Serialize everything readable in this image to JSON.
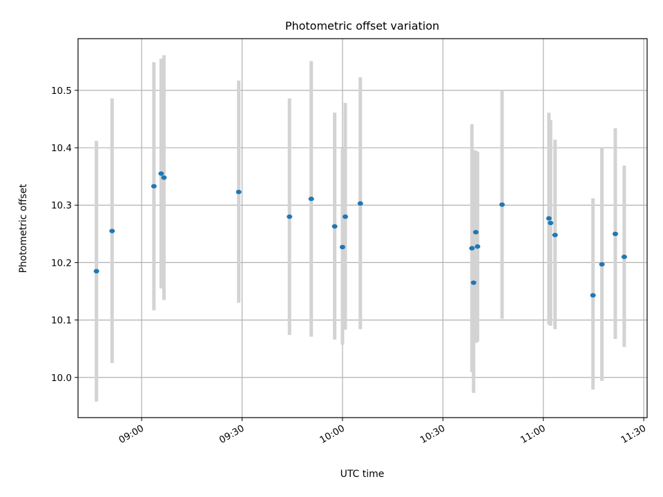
{
  "chart_data": {
    "type": "scatter",
    "title": "Photometric offset variation",
    "xlabel": "UTC time",
    "ylabel": "Photometric offset",
    "xlim": [
      "08:41",
      "11:31"
    ],
    "ylim": [
      9.93,
      10.59
    ],
    "x_ticks": [
      "09:00",
      "09:30",
      "10:00",
      "10:30",
      "11:00",
      "11:30"
    ],
    "y_ticks": [
      10.0,
      10.1,
      10.2,
      10.3,
      10.4,
      10.5
    ],
    "y_tick_labels": [
      "10.0",
      "10.1",
      "10.2",
      "10.3",
      "10.4",
      "10.5"
    ],
    "grid": true,
    "colors": {
      "points": "#1f77b4",
      "error_bars": "#d3d3d3",
      "grid": "#b0b0b0"
    },
    "points": [
      {
        "x": "08:46:30",
        "y": 10.185,
        "y_low": 9.958,
        "y_high": 10.412
      },
      {
        "x": "08:51:10",
        "y": 10.255,
        "y_low": 10.025,
        "y_high": 10.486
      },
      {
        "x": "09:03:40",
        "y": 10.333,
        "y_low": 10.117,
        "y_high": 10.549
      },
      {
        "x": "09:05:50",
        "y": 10.355,
        "y_low": 10.155,
        "y_high": 10.555
      },
      {
        "x": "09:06:40",
        "y": 10.348,
        "y_low": 10.135,
        "y_high": 10.561
      },
      {
        "x": "09:29:00",
        "y": 10.323,
        "y_low": 10.13,
        "y_high": 10.517
      },
      {
        "x": "09:44:10",
        "y": 10.28,
        "y_low": 10.074,
        "y_high": 10.486
      },
      {
        "x": "09:50:40",
        "y": 10.311,
        "y_low": 10.071,
        "y_high": 10.551
      },
      {
        "x": "09:57:40",
        "y": 10.263,
        "y_low": 10.066,
        "y_high": 10.461
      },
      {
        "x": "10:00:00",
        "y": 10.227,
        "y_low": 10.057,
        "y_high": 10.398
      },
      {
        "x": "10:00:50",
        "y": 10.28,
        "y_low": 10.083,
        "y_high": 10.478
      },
      {
        "x": "10:05:20",
        "y": 10.303,
        "y_low": 10.084,
        "y_high": 10.523
      },
      {
        "x": "10:38:40",
        "y": 10.225,
        "y_low": 10.009,
        "y_high": 10.441
      },
      {
        "x": "10:39:10",
        "y": 10.165,
        "y_low": 9.973,
        "y_high": 10.396
      },
      {
        "x": "10:39:50",
        "y": 10.253,
        "y_low": 10.06,
        "y_high": 10.395
      },
      {
        "x": "10:40:20",
        "y": 10.228,
        "y_low": 10.062,
        "y_high": 10.393
      },
      {
        "x": "10:47:40",
        "y": 10.301,
        "y_low": 10.102,
        "y_high": 10.5
      },
      {
        "x": "11:01:40",
        "y": 10.277,
        "y_low": 10.092,
        "y_high": 10.461
      },
      {
        "x": "11:02:10",
        "y": 10.269,
        "y_low": 10.09,
        "y_high": 10.448
      },
      {
        "x": "11:03:30",
        "y": 10.248,
        "y_low": 10.084,
        "y_high": 10.414
      },
      {
        "x": "11:14:50",
        "y": 10.143,
        "y_low": 9.979,
        "y_high": 10.312
      },
      {
        "x": "11:17:30",
        "y": 10.197,
        "y_low": 9.994,
        "y_high": 10.4
      },
      {
        "x": "11:21:30",
        "y": 10.25,
        "y_low": 10.067,
        "y_high": 10.434
      },
      {
        "x": "11:24:10",
        "y": 10.21,
        "y_low": 10.053,
        "y_high": 10.369
      }
    ]
  }
}
